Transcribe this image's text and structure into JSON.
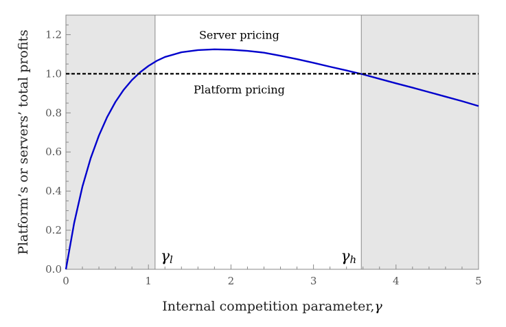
{
  "chart_data": {
    "type": "line",
    "title": "",
    "xlabel": "Internal competition parameter,",
    "xlabel_symbol": "γ",
    "ylabel": "Platform’s or servers’ total profits",
    "xlim": [
      0,
      5
    ],
    "ylim": [
      0,
      1.3
    ],
    "x_ticks": [
      0,
      1,
      2,
      3,
      4,
      5
    ],
    "y_ticks": [
      0.0,
      0.2,
      0.4,
      0.6,
      0.8,
      1.0,
      1.2
    ],
    "x_tick_labels": [
      "0",
      "1",
      "2",
      "3",
      "4",
      "5"
    ],
    "y_tick_labels": [
      "0.0",
      "0.2",
      "0.4",
      "0.6",
      "0.8",
      "1.0",
      "1.2"
    ],
    "grid": false,
    "series": [
      {
        "name": "Server pricing",
        "style": "solid",
        "color": "#0000cc",
        "x": [
          0,
          0.1,
          0.2,
          0.3,
          0.4,
          0.5,
          0.6,
          0.7,
          0.8,
          0.9,
          1.0,
          1.1,
          1.2,
          1.4,
          1.6,
          1.8,
          2.0,
          2.2,
          2.4,
          2.6,
          2.8,
          3.0,
          3.2,
          3.4,
          3.6,
          3.8,
          4.0,
          4.2,
          4.4,
          4.6,
          4.8,
          5.0
        ],
        "y": [
          0,
          0.237,
          0.423,
          0.568,
          0.684,
          0.779,
          0.856,
          0.918,
          0.968,
          1.008,
          1.04,
          1.066,
          1.086,
          1.11,
          1.121,
          1.125,
          1.123,
          1.117,
          1.108,
          1.092,
          1.075,
          1.056,
          1.036,
          1.017,
          0.997,
          0.974,
          0.951,
          0.929,
          0.906,
          0.883,
          0.86,
          0.835
        ]
      },
      {
        "name": "Platform pricing",
        "style": "dashed",
        "color": "#000000",
        "x": [
          0,
          5
        ],
        "y": [
          1.0,
          1.0
        ]
      }
    ],
    "shaded_regions": [
      {
        "x_from": 0,
        "x_to": 1.08,
        "color": "#e6e6e6"
      },
      {
        "x_from": 3.58,
        "x_to": 5,
        "color": "#e6e6e6"
      }
    ],
    "vertical_lines": [
      {
        "x": 1.08,
        "label": "γ",
        "sub": "l"
      },
      {
        "x": 3.58,
        "label": "γ",
        "sub": "h"
      }
    ],
    "annotations": [
      {
        "text": "Server pricing",
        "x": 2.1,
        "y": 1.2
      },
      {
        "text": "Platform pricing",
        "x": 2.1,
        "y": 0.92
      }
    ]
  }
}
